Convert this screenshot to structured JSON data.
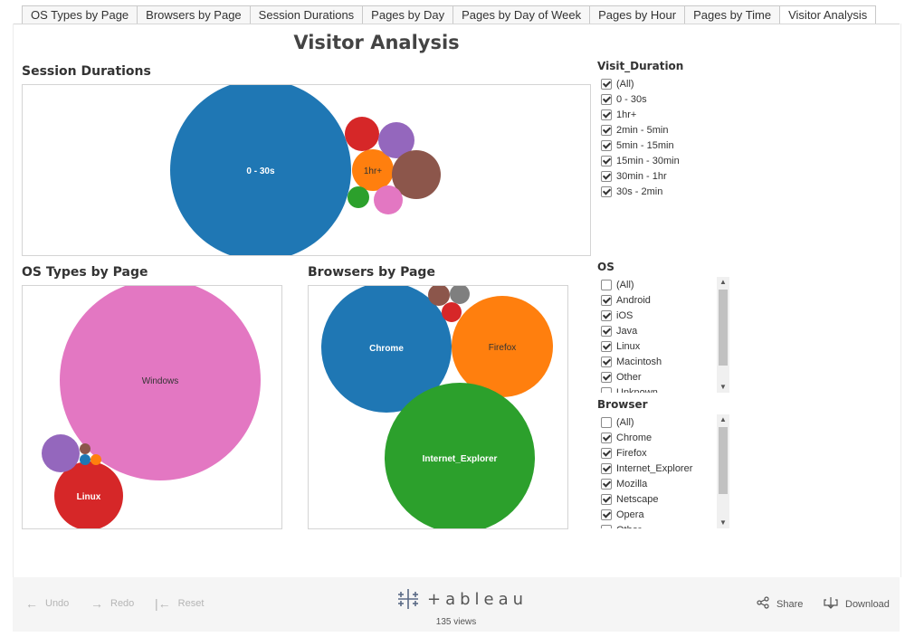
{
  "tabs": [
    "OS Types by Page",
    "Browsers by Page",
    "Session Durations",
    "Pages by Day",
    "Pages by Day of Week",
    "Pages by Hour",
    "Pages by Time",
    "Visitor Analysis"
  ],
  "active_tab": "Visitor Analysis",
  "dashboard_title": "Visitor Analysis",
  "sections": {
    "session": "Session Durations",
    "os": "OS Types by Page",
    "browser": "Browsers by Page"
  },
  "filters": {
    "visit_duration": {
      "title": "Visit_Duration",
      "items": [
        {
          "label": "(All)",
          "checked": true
        },
        {
          "label": "0 - 30s",
          "checked": true
        },
        {
          "label": "1hr+",
          "checked": true
        },
        {
          "label": "2min - 5min",
          "checked": true
        },
        {
          "label": "5min - 15min",
          "checked": true
        },
        {
          "label": "15min - 30min",
          "checked": true
        },
        {
          "label": "30min - 1hr",
          "checked": true
        },
        {
          "label": "30s - 2min",
          "checked": true
        }
      ]
    },
    "os": {
      "title": "OS",
      "items": [
        {
          "label": "(All)",
          "checked": false
        },
        {
          "label": "Android",
          "checked": true
        },
        {
          "label": "iOS",
          "checked": true
        },
        {
          "label": "Java",
          "checked": true
        },
        {
          "label": "Linux",
          "checked": true
        },
        {
          "label": "Macintosh",
          "checked": true
        },
        {
          "label": "Other",
          "checked": true
        },
        {
          "label": "Unknown",
          "checked": false
        }
      ]
    },
    "browser": {
      "title": "Browser",
      "items": [
        {
          "label": "(All)",
          "checked": false
        },
        {
          "label": "Chrome",
          "checked": true
        },
        {
          "label": "Firefox",
          "checked": true
        },
        {
          "label": "Internet_Explorer",
          "checked": true
        },
        {
          "label": "Mozilla",
          "checked": true
        },
        {
          "label": "Netscape",
          "checked": true
        },
        {
          "label": "Opera",
          "checked": true
        },
        {
          "label": "Other",
          "checked": false
        }
      ]
    }
  },
  "chart_data": [
    {
      "type": "bubble",
      "title": "Session Durations",
      "bubbles": [
        {
          "label": "0 - 30s",
          "color": "#1f77b4",
          "show_label": true,
          "label_color": "#ffffff"
        },
        {
          "label": "1hr+",
          "color": "#ff7f0e",
          "show_label": true,
          "label_color": "#333333"
        },
        {
          "label": "",
          "color": "#d62728",
          "show_label": false
        },
        {
          "label": "",
          "color": "#9467bd",
          "show_label": false
        },
        {
          "label": "",
          "color": "#8c564b",
          "show_label": false
        },
        {
          "label": "",
          "color": "#2ca02c",
          "show_label": false
        },
        {
          "label": "",
          "color": "#e377c2",
          "show_label": false
        }
      ]
    },
    {
      "type": "bubble",
      "title": "OS Types by Page",
      "bubbles": [
        {
          "label": "Windows",
          "color": "#e377c2",
          "show_label": true,
          "label_color": "#333333"
        },
        {
          "label": "Linux",
          "color": "#d62728",
          "show_label": true,
          "label_color": "#ffffff"
        },
        {
          "label": "",
          "color": "#9467bd",
          "show_label": false
        },
        {
          "label": "",
          "color": "#8c564b",
          "show_label": false
        },
        {
          "label": "",
          "color": "#1f77b4",
          "show_label": false
        },
        {
          "label": "",
          "color": "#ff7f0e",
          "show_label": false
        }
      ]
    },
    {
      "type": "bubble",
      "title": "Browsers by Page",
      "bubbles": [
        {
          "label": "Chrome",
          "color": "#1f77b4",
          "show_label": true,
          "label_color": "#ffffff"
        },
        {
          "label": "Firefox",
          "color": "#ff7f0e",
          "show_label": true,
          "label_color": "#333333"
        },
        {
          "label": "Internet_Explorer",
          "color": "#2ca02c",
          "show_label": true,
          "label_color": "#ffffff"
        },
        {
          "label": "",
          "color": "#8c564b",
          "show_label": false
        },
        {
          "label": "",
          "color": "#7f7f7f",
          "show_label": false
        },
        {
          "label": "",
          "color": "#d62728",
          "show_label": false
        }
      ]
    }
  ],
  "footer": {
    "undo": "Undo",
    "redo": "Redo",
    "reset": "Reset",
    "logo": "+ableau",
    "views": "135 views",
    "share": "Share",
    "download": "Download"
  }
}
